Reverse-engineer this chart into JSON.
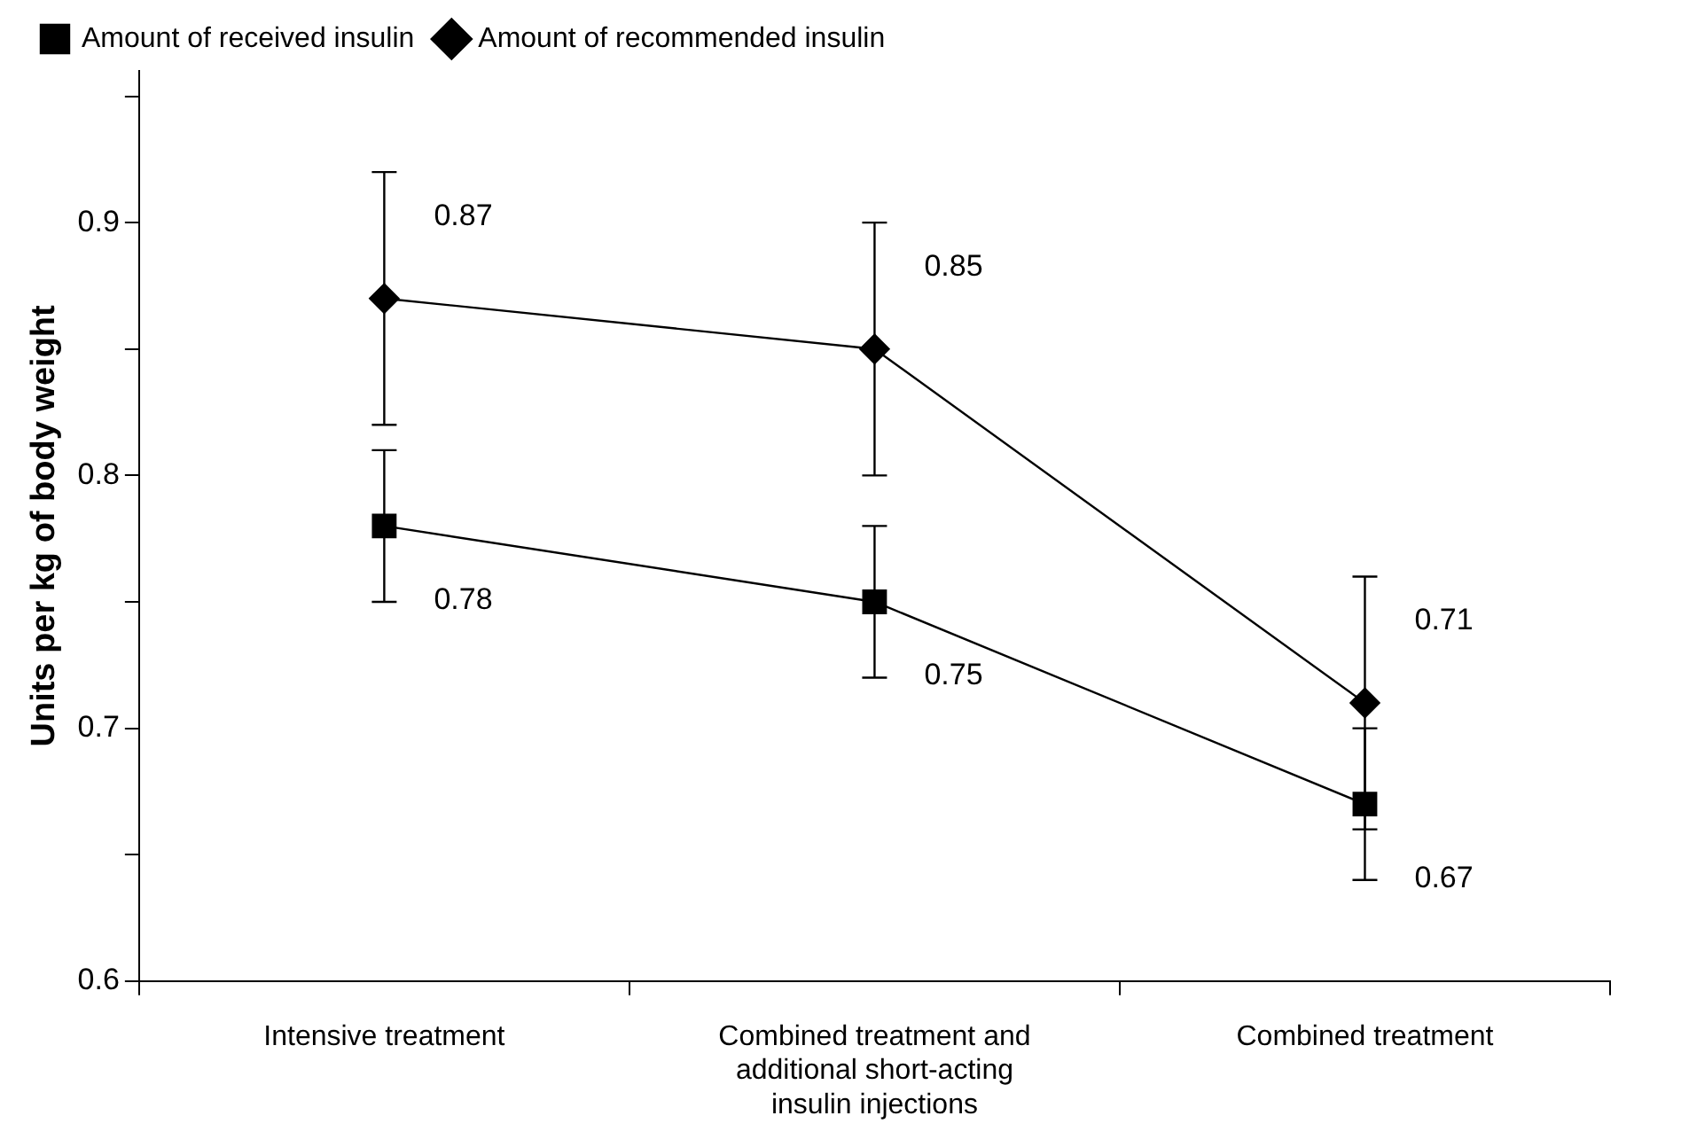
{
  "chart_data": {
    "type": "line",
    "ylabel": "Units per kg of body weight",
    "categories": [
      "Intensive treatment",
      "Combined treatment and additional short-acting insulin injections",
      "Combined treatment"
    ],
    "series": [
      {
        "name": "Amount of received insulin",
        "color": "#000000",
        "marker": "square",
        "values": [
          0.78,
          0.75,
          0.67
        ],
        "errors": [
          0.03,
          0.03,
          0.03
        ]
      },
      {
        "name": "Amount of recommended insulin",
        "color": "#000000",
        "marker": "diamond",
        "values": [
          0.87,
          0.85,
          0.71
        ],
        "errors": [
          0.05,
          0.05,
          0.05
        ]
      }
    ],
    "ylim": [
      0.6,
      0.96
    ],
    "yticks": [
      0.6,
      {
        "value": 0.65,
        "label": null
      },
      0.7,
      {
        "value": 0.75,
        "label": null
      },
      0.8,
      {
        "value": 0.85,
        "label": null
      },
      0.9,
      {
        "value": 0.95,
        "label": null
      }
    ],
    "grid": false,
    "legend": "top",
    "data_labels": true,
    "line_style": "solid"
  }
}
